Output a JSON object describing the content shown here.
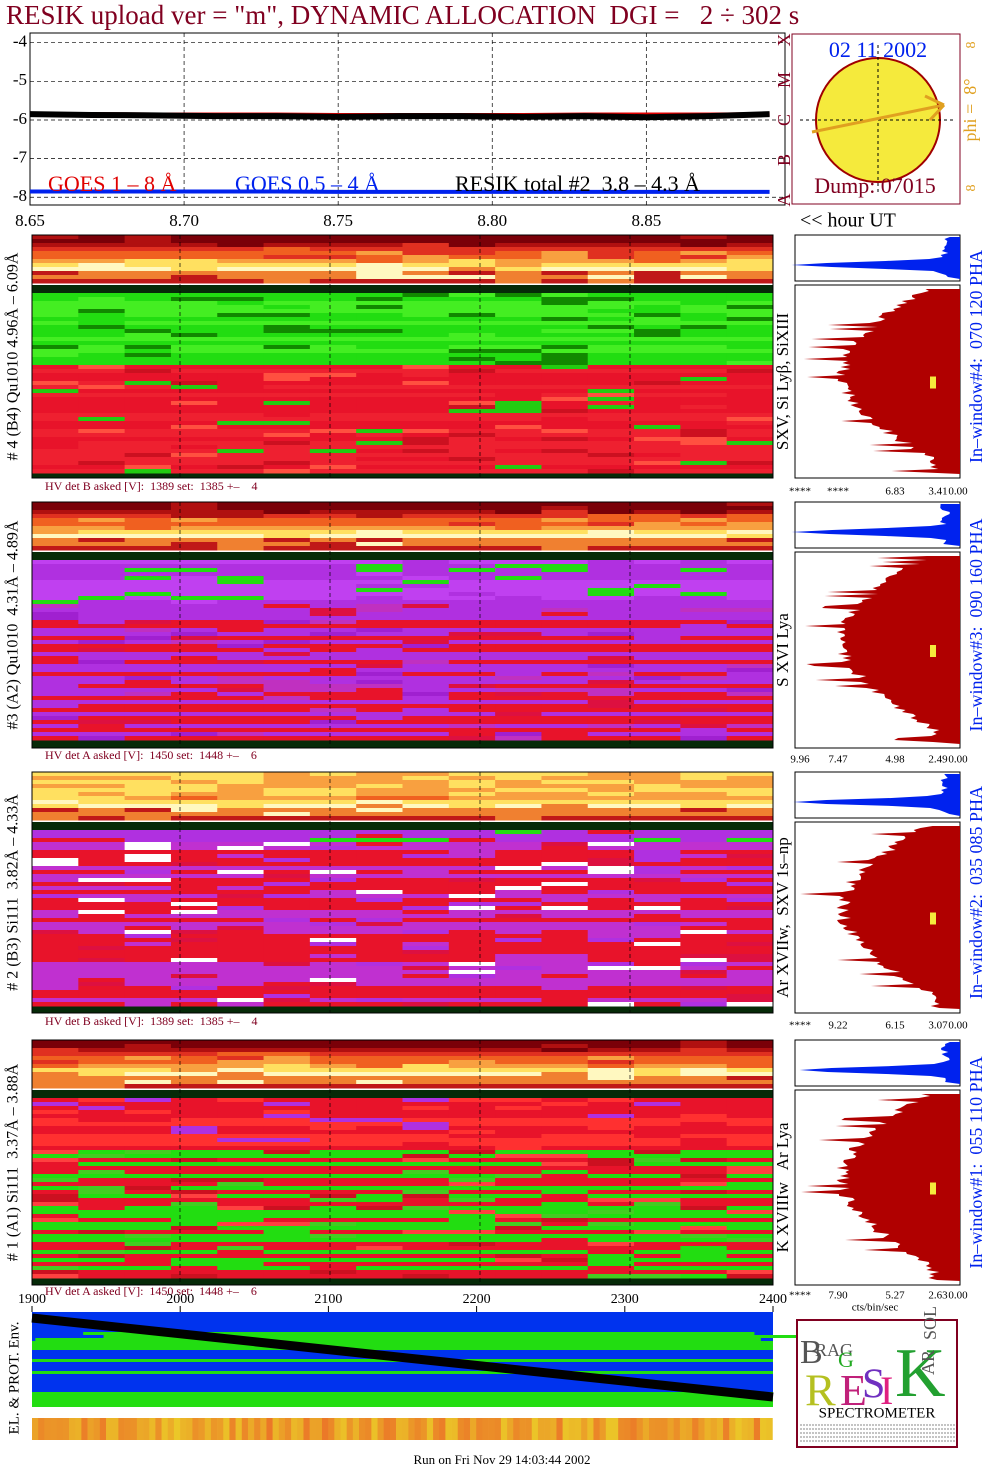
{
  "title": "RESIK upload ver = \"m\", DYNAMIC ALLOCATION  DGI =   2 ÷ 302 s",
  "chart_data": [
    {
      "type": "line",
      "x": [
        8.65,
        8.67,
        8.69,
        8.71,
        8.73,
        8.75,
        8.77,
        8.79,
        8.81,
        8.83,
        8.85,
        8.87,
        8.89
      ],
      "series": [
        {
          "name": "GOES 1 – 8 Å",
          "color": "#e00000",
          "values": [
            -5.85,
            -5.85,
            -5.86,
            -5.86,
            -5.86,
            -5.87,
            -5.87,
            -5.87,
            -5.87,
            -5.86,
            -5.86,
            -5.86,
            -5.85
          ]
        },
        {
          "name": "GOES 0.5 – 4 Å",
          "color": "#0022ee",
          "values": [
            -7.85,
            -7.85,
            -7.85,
            -7.85,
            -7.85,
            -7.86,
            -7.86,
            -7.86,
            -7.86,
            -7.86,
            -7.86,
            -7.86,
            -7.86
          ]
        },
        {
          "name": "RESIK total #2  3.8 – 4.3 Å",
          "color": "#000000",
          "values": [
            -5.85,
            -5.87,
            -5.88,
            -5.9,
            -5.9,
            -5.92,
            -5.9,
            -5.9,
            -5.92,
            -5.9,
            -5.93,
            -5.9,
            -5.85
          ]
        }
      ],
      "xlim": [
        8.65,
        8.895
      ],
      "ylim": [
        -8.2,
        -3.75
      ],
      "xticks": [
        8.65,
        {
          "value": 8.7,
          "label": "8.70"
        },
        8.75,
        {
          "value": 8.8,
          "label": "8.80"
        },
        8.85
      ],
      "yticks": [
        -4,
        -5,
        -6,
        -7,
        -8
      ],
      "grid": true
    },
    {
      "type": "band",
      "ylabel": "EL. & PROT. Env.",
      "xlim": [
        1900,
        2400
      ],
      "xticks": [
        1900,
        2000,
        2100,
        2200,
        2300,
        2400
      ]
    }
  ],
  "clock": {
    "date": "02 11 2002",
    "phi": "phi =  8°",
    "marks": [
      "8",
      "8"
    ],
    "dump": "Dump: 07015",
    "classes": [
      "X",
      "M",
      "C",
      "B",
      "A"
    ]
  },
  "hour_label": "<< hour UT",
  "cts_label": "cts/bin/sec",
  "panels": [
    {
      "label": "# 4 (B4) Qu1010 4.96Å – 6.09Å",
      "hv": "HV det B asked [V]:  1389 set:  1385 +–    4",
      "lines": "SXV, Si Lyβ, SiXIII",
      "window": "In–window#4:  070 120 PHA",
      "scale": [
        "****",
        "****",
        "6.83",
        "3.41",
        "0.00"
      ]
    },
    {
      "label": "#3 (A2) Qu1010  4.31Å – 4.89Å",
      "hv": "HV det A asked [V]:  1450 set:  1448 +–    6",
      "lines": "S XVI Lya",
      "window": "In–window#3:  090 160 PHA",
      "scale": [
        "9.96",
        "7.47",
        "4.98",
        "2.49",
        "0.00"
      ]
    },
    {
      "label": "# 2 (B3) Si111  3.82Å – 4.33Å",
      "hv": "HV det B asked [V]:  1389 set:  1385 +–    4",
      "lines": "Ar XVIIw,  SXV 1s–np",
      "window": "In–window#2:  035 085 PHA",
      "scale": [
        "****",
        "9.22",
        "6.15",
        "3.07",
        "0.00"
      ]
    },
    {
      "label": "# 1 (A1) Si111  3.37Å – 3.88Å",
      "hv": "HV det A asked [V]:  1450 set:  1448 +–    6",
      "lines": "K XVIIIw   Ar Lya",
      "window": "In–window#1:  055 110 PHA",
      "scale": [
        "****",
        "7.90",
        "5.27",
        "2.63",
        "0.00"
      ]
    }
  ],
  "logo": {
    "letters": [
      "B",
      "RAG",
      "G",
      "R",
      "E",
      "S",
      "I",
      "K",
      "SOL",
      "AR"
    ],
    "caption": "SPECTROMETER"
  },
  "footer": "Run on Fri Nov 29 14:03:44 2002"
}
